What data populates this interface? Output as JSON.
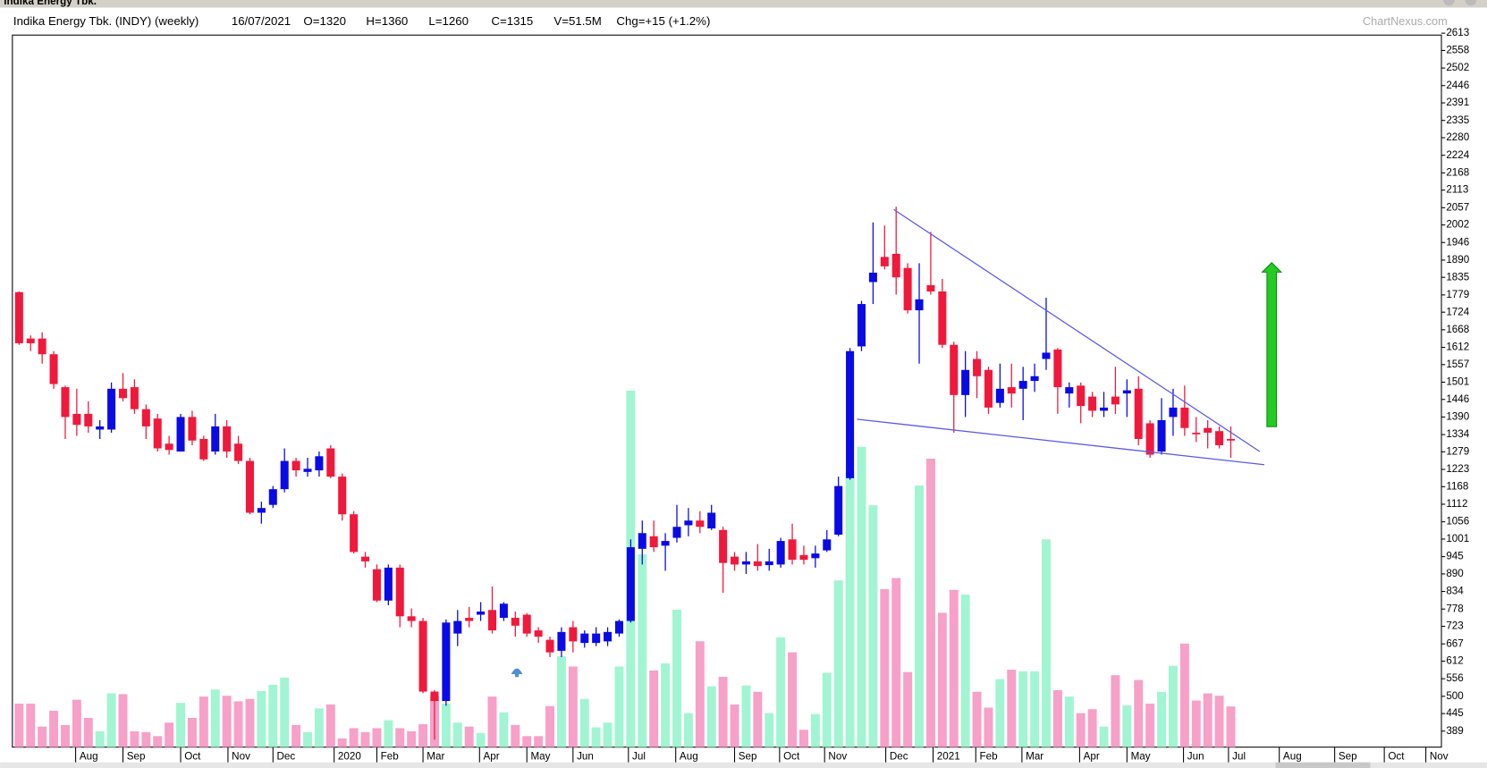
{
  "window_title": "Indika Energy Tbk.",
  "watermark": "ChartNexus.com",
  "chart_data": {
    "type": "candlestick",
    "title": "Indika Energy Tbk. (INDY) (weekly)",
    "header": [
      "16/07/2021",
      "O=1320",
      "H=1360",
      "L=1260",
      "C=1315",
      "V=51.5M",
      "Chg=+15 (+1.2%)"
    ],
    "categories": [
      null,
      null,
      null,
      null,
      null,
      null,
      null,
      null,
      null,
      null,
      null,
      null,
      null,
      null,
      null,
      null,
      null,
      null,
      null,
      null,
      null,
      null,
      null,
      null,
      null,
      null,
      null,
      null,
      null,
      null,
      null,
      null,
      null,
      null,
      null,
      null,
      null,
      null,
      null,
      null,
      null,
      null,
      null,
      null,
      null,
      null,
      null,
      null,
      null,
      null,
      null,
      null,
      null,
      null,
      null,
      null,
      null,
      null,
      null,
      null,
      null,
      null,
      null,
      null,
      null,
      null,
      null,
      null,
      null,
      null,
      null,
      null,
      null,
      null,
      null,
      null,
      null,
      null,
      null,
      null,
      null,
      null,
      null,
      null,
      null,
      null,
      null,
      null,
      null,
      null,
      null,
      null,
      null,
      null,
      null,
      null,
      null,
      null,
      null,
      null,
      null,
      null,
      null,
      null,
      null,
      null
    ],
    "open": [
      1788,
      1640,
      1640,
      1590,
      1485,
      1400,
      1400,
      1350,
      1350,
      1480,
      1485,
      1415,
      1385,
      1305,
      1280,
      1390,
      1320,
      1280,
      1360,
      1305,
      1250,
      1085,
      1110,
      1160,
      1250,
      1215,
      1220,
      1290,
      1200,
      1080,
      945,
      905,
      805,
      910,
      755,
      740,
      515,
      485,
      700,
      750,
      760,
      775,
      750,
      750,
      760,
      710,
      680,
      645,
      720,
      670,
      670,
      675,
      700,
      740,
      970,
      1010,
      980,
      1005,
      1045,
      1060,
      1035,
      1030,
      945,
      920,
      930,
      918,
      920,
      1000,
      950,
      940,
      965,
      1015,
      1195,
      1615,
      1820,
      1900,
      1910,
      1865,
      1730,
      1810,
      1790,
      1620,
      1460,
      1575,
      1540,
      1435,
      1485,
      1480,
      1505,
      1575,
      1605,
      1465,
      1490,
      1455,
      1410,
      1455,
      1465,
      1480,
      1370,
      1280,
      1390,
      1420,
      1340,
      1355,
      1345,
      1320
    ],
    "high": [
      1790,
      1650,
      1660,
      1600,
      1490,
      1480,
      1440,
      1380,
      1500,
      1530,
      1510,
      1430,
      1400,
      1330,
      1400,
      1410,
      1330,
      1400,
      1380,
      1330,
      1260,
      1120,
      1170,
      1290,
      1260,
      1260,
      1280,
      1300,
      1210,
      1090,
      960,
      920,
      920,
      920,
      780,
      750,
      520,
      745,
      775,
      785,
      800,
      850,
      800,
      770,
      765,
      720,
      690,
      720,
      740,
      710,
      720,
      720,
      745,
      1000,
      1060,
      1060,
      1020,
      1110,
      1100,
      1090,
      1110,
      1040,
      960,
      960,
      985,
      970,
      1005,
      1050,
      980,
      980,
      1030,
      1200,
      1610,
      1760,
      2010,
      2000,
      2060,
      1880,
      1880,
      1980,
      1830,
      1630,
      1600,
      1600,
      1550,
      1560,
      1560,
      1550,
      1560,
      1770,
      1610,
      1500,
      1500,
      1470,
      1470,
      1550,
      1510,
      1520,
      1380,
      1450,
      1480,
      1490,
      1390,
      1380,
      1360,
      1360
    ],
    "low": [
      1620,
      1600,
      1560,
      1480,
      1320,
      1330,
      1340,
      1320,
      1340,
      1440,
      1400,
      1320,
      1280,
      1270,
      1280,
      1300,
      1250,
      1270,
      1260,
      1240,
      1080,
      1050,
      1100,
      1150,
      1200,
      1200,
      1200,
      1195,
      1060,
      955,
      910,
      800,
      790,
      720,
      720,
      510,
      362,
      470,
      660,
      720,
      740,
      700,
      740,
      690,
      690,
      670,
      625,
      625,
      640,
      655,
      660,
      660,
      690,
      735,
      920,
      960,
      900,
      990,
      1010,
      1020,
      1030,
      830,
      900,
      890,
      900,
      900,
      910,
      920,
      920,
      910,
      960,
      1010,
      1190,
      1600,
      1750,
      1860,
      1780,
      1720,
      1560,
      1780,
      1610,
      1340,
      1390,
      1450,
      1400,
      1420,
      1420,
      1380,
      1470,
      1540,
      1400,
      1420,
      1370,
      1390,
      1390,
      1400,
      1390,
      1300,
      1260,
      1270,
      1330,
      1330,
      1310,
      1290,
      1290,
      1260
    ],
    "close": [
      1625,
      1625,
      1590,
      1495,
      1390,
      1365,
      1360,
      1360,
      1480,
      1450,
      1415,
      1360,
      1290,
      1285,
      1390,
      1315,
      1255,
      1360,
      1280,
      1250,
      1085,
      1100,
      1160,
      1250,
      1220,
      1225,
      1265,
      1200,
      1080,
      960,
      930,
      805,
      910,
      755,
      740,
      515,
      485,
      735,
      740,
      740,
      770,
      710,
      795,
      725,
      700,
      690,
      640,
      705,
      675,
      700,
      700,
      705,
      740,
      975,
      1020,
      975,
      995,
      1040,
      1060,
      1040,
      1085,
      925,
      920,
      930,
      915,
      930,
      995,
      935,
      935,
      955,
      1000,
      1170,
      1600,
      1750,
      1850,
      1870,
      1835,
      1730,
      1765,
      1790,
      1620,
      1460,
      1540,
      1520,
      1420,
      1480,
      1465,
      1505,
      1520,
      1595,
      1485,
      1485,
      1425,
      1410,
      1420,
      1430,
      1475,
      1320,
      1270,
      1380,
      1420,
      1355,
      1335,
      1340,
      1300,
      1315
    ],
    "volume": [
      55,
      55,
      26,
      46,
      28,
      60,
      37,
      20,
      68,
      67,
      20,
      19,
      14,
      31,
      56,
      37,
      64,
      73,
      65,
      58,
      61,
      71,
      79,
      88,
      28,
      19,
      49,
      54,
      11,
      24,
      19,
      24,
      34,
      24,
      20,
      29,
      64,
      55,
      31,
      26,
      18,
      64,
      44,
      28,
      14,
      14,
      52,
      115,
      102,
      61,
      25,
      31,
      102,
      451,
      244,
      97,
      106,
      174,
      43,
      134,
      77,
      89,
      54,
      78,
      70,
      43,
      139,
      120,
      22,
      42,
      94,
      211,
      349,
      380,
      306,
      200,
      214,
      95,
      331,
      365,
      170,
      199,
      193,
      70,
      50,
      86,
      98,
      96,
      96,
      263,
      72,
      64,
      43,
      48,
      26,
      91,
      53,
      85,
      55,
      70,
      103,
      131,
      59,
      68,
      65,
      51.5
    ],
    "xlim": [
      -0.58,
      123.25
    ],
    "ylim": [
      338,
      2607
    ],
    "vlim": [
      0,
      901
    ],
    "yticks": [
      2613,
      2558,
      2502,
      2446,
      2391,
      2335,
      2280,
      2224,
      2168,
      2113,
      2057,
      2002,
      1946,
      1890,
      1835,
      1779,
      1724,
      1668,
      1612,
      1557,
      1501,
      1446,
      1390,
      1334,
      1279,
      1223,
      1168,
      1112,
      1056,
      1001,
      945,
      890,
      834,
      778,
      723,
      667,
      612,
      556,
      500,
      445,
      389
    ],
    "xticks": [
      {
        "value": 4.9,
        "label": "Aug"
      },
      {
        "value": 9.0,
        "label": "Sep"
      },
      {
        "value": 14.0,
        "label": "Oct"
      },
      {
        "value": 18.1,
        "label": "Nov"
      },
      {
        "value": 22.0,
        "label": "Dec"
      },
      {
        "value": 27.3,
        "label": "2020"
      },
      {
        "value": 31.0,
        "label": "Feb"
      },
      {
        "value": 35.0,
        "label": "Mar"
      },
      {
        "value": 39.9,
        "label": "Apr"
      },
      {
        "value": 44.0,
        "label": "May"
      },
      {
        "value": 48.0,
        "label": "Jun"
      },
      {
        "value": 52.8,
        "label": "Jul"
      },
      {
        "value": 56.9,
        "label": "Aug"
      },
      {
        "value": 62.0,
        "label": "Sep"
      },
      {
        "value": 65.9,
        "label": "Oct"
      },
      {
        "value": 69.8,
        "label": "Nov"
      },
      {
        "value": 75.1,
        "label": "Dec"
      },
      {
        "value": 79.2,
        "label": "2021"
      },
      {
        "value": 82.9,
        "label": "Feb"
      },
      {
        "value": 86.9,
        "label": "Mar"
      },
      {
        "value": 91.9,
        "label": "Apr"
      },
      {
        "value": 96.0,
        "label": "May"
      },
      {
        "value": 100.9,
        "label": "Jun"
      },
      {
        "value": 104.8,
        "label": "Jul"
      },
      {
        "value": 109.2,
        "label": "Aug"
      },
      {
        "value": 114.0,
        "label": "Sep"
      },
      {
        "value": 118.3,
        "label": "Oct"
      },
      {
        "value": 121.9,
        "label": "Nov"
      }
    ],
    "trendlines": [
      {
        "x": [
          75.8,
          107.5
        ],
        "y": [
          2051,
          1280
        ]
      },
      {
        "x": [
          72.6,
          107.9
        ],
        "y": [
          1383,
          1238
        ]
      }
    ],
    "up_color": "#0a0ae6",
    "down_color": "#f0193c",
    "volume_up_color": "#a2f5d2",
    "volume_down_color": "#f7a0c8",
    "trendline_color": "#5a5ae6",
    "grid": false
  }
}
